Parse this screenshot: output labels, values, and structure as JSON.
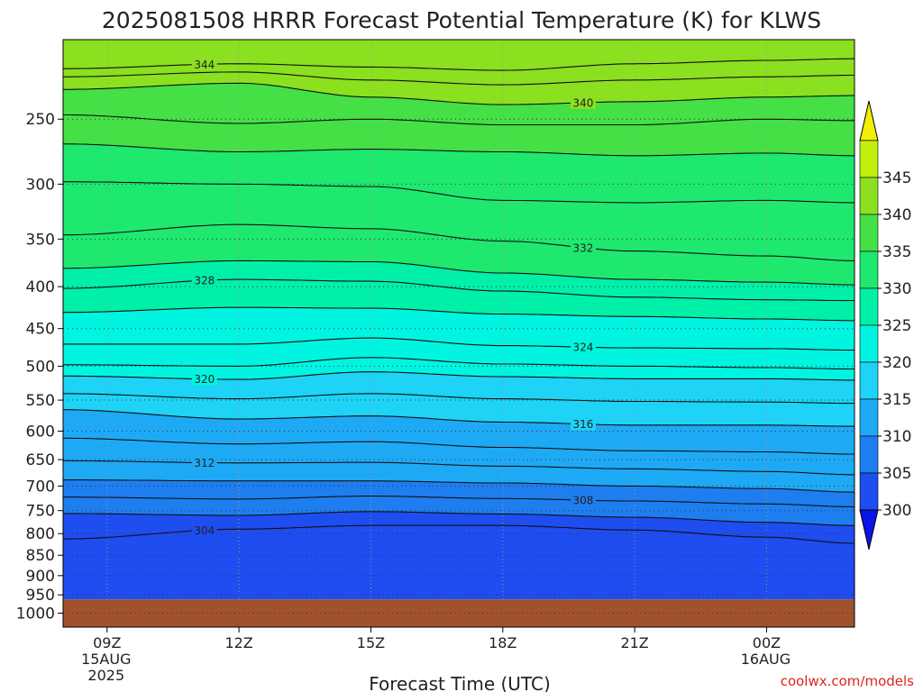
{
  "chart_data": {
    "type": "heatmap",
    "title": "2025081508 HRRR Forecast Potential Temperature (K) for KLWS",
    "xlabel": "Forecast Time (UTC)",
    "ylabel": "",
    "credit": "coolwx.com/models",
    "x_ticks": [
      {
        "hour": 9,
        "label": "09Z",
        "label2": "15AUG",
        "label3": "2025"
      },
      {
        "hour": 12,
        "label": "12Z",
        "label2": "",
        "label3": ""
      },
      {
        "hour": 15,
        "label": "15Z",
        "label2": "",
        "label3": ""
      },
      {
        "hour": 18,
        "label": "18Z",
        "label2": "",
        "label3": ""
      },
      {
        "hour": 21,
        "label": "21Z",
        "label2": "",
        "label3": ""
      },
      {
        "hour": 24,
        "label": "00Z",
        "label2": "16AUG",
        "label3": ""
      }
    ],
    "xlim_hours": [
      8,
      26
    ],
    "y_ticks": [
      "250",
      "300",
      "350",
      "400",
      "450",
      "500",
      "550",
      "600",
      "650",
      "700",
      "750",
      "800",
      "850",
      "900",
      "950",
      "1000"
    ],
    "ylim_hpa": [
      200,
      1040
    ],
    "y_scale": "log",
    "ground_level_hpa": 962,
    "colorbar": {
      "levels": [
        300,
        305,
        310,
        315,
        320,
        325,
        330,
        335,
        340,
        345
      ],
      "labels": [
        "300",
        "305",
        "310",
        "315",
        "320",
        "325",
        "330",
        "335",
        "340",
        "345"
      ],
      "colors": [
        "#0a14e6",
        "#1e4df0",
        "#1e7ef0",
        "#1ea9f5",
        "#1ed3f5",
        "#00f5e0",
        "#00f0a8",
        "#1ee86e",
        "#44e046",
        "#8be020",
        "#c2ef10",
        "#f0f000"
      ]
    },
    "contour_interval_K": 2,
    "contours": [
      {
        "theta": 344,
        "label": "344",
        "hours": [
          8,
          12,
          15,
          18,
          21,
          24,
          26
        ],
        "hpa": [
          217,
          214,
          216,
          218,
          214,
          212,
          211
        ]
      },
      {
        "theta": 342,
        "label": "",
        "hours": [
          8,
          12,
          15,
          18,
          21,
          24,
          26
        ],
        "hpa": [
          222,
          219,
          224,
          227,
          224,
          222,
          221
        ]
      },
      {
        "theta": 340,
        "label": "340",
        "hours": [
          8,
          12,
          15,
          18,
          21,
          24,
          26
        ],
        "hpa": [
          230,
          226,
          235,
          240,
          238,
          235,
          234
        ]
      },
      {
        "theta": 338,
        "label": "",
        "hours": [
          8,
          12,
          15,
          18,
          21,
          24,
          26
        ],
        "hpa": [
          247,
          253,
          250,
          254,
          254,
          250,
          251
        ]
      },
      {
        "theta": 336,
        "label": "",
        "hours": [
          8,
          12,
          15,
          18,
          21,
          24,
          26
        ],
        "hpa": [
          268,
          274,
          272,
          274,
          277,
          275,
          277
        ]
      },
      {
        "theta": 334,
        "label": "",
        "hours": [
          8,
          12,
          15,
          18,
          21,
          24,
          26
        ],
        "hpa": [
          298,
          300,
          302,
          314,
          316,
          314,
          316
        ]
      },
      {
        "theta": 332,
        "label": "332",
        "hours": [
          8,
          12,
          15,
          18,
          21,
          24,
          26
        ],
        "hpa": [
          346,
          336,
          340,
          352,
          362,
          367,
          372
        ]
      },
      {
        "theta": 330,
        "label": "",
        "hours": [
          8,
          12,
          15,
          18,
          21,
          24,
          26
        ],
        "hpa": [
          380,
          372,
          373,
          385,
          392,
          395,
          398
        ]
      },
      {
        "theta": 328,
        "label": "328",
        "hours": [
          8,
          12,
          15,
          18,
          21,
          24,
          26
        ],
        "hpa": [
          402,
          392,
          394,
          405,
          412,
          415,
          416
        ]
      },
      {
        "theta": 326,
        "label": "",
        "hours": [
          8,
          12,
          15,
          18,
          21,
          24,
          26
        ],
        "hpa": [
          430,
          424,
          425,
          432,
          435,
          438,
          440
        ]
      },
      {
        "theta": 324,
        "label": "324",
        "hours": [
          8,
          12,
          15,
          18,
          21,
          24,
          26
        ],
        "hpa": [
          470,
          470,
          462,
          472,
          475,
          476,
          478
        ]
      },
      {
        "theta": 322,
        "label": "",
        "hours": [
          8,
          12,
          15,
          18,
          21,
          24,
          26
        ],
        "hpa": [
          498,
          500,
          488,
          497,
          500,
          502,
          504
        ]
      },
      {
        "theta": 320,
        "label": "320",
        "hours": [
          8,
          12,
          15,
          18,
          21,
          24,
          26
        ],
        "hpa": [
          514,
          519,
          508,
          515,
          518,
          518,
          520
        ]
      },
      {
        "theta": 318,
        "label": "",
        "hours": [
          8,
          12,
          15,
          18,
          21,
          24,
          26
        ],
        "hpa": [
          540,
          548,
          540,
          548,
          552,
          553,
          555
        ]
      },
      {
        "theta": 316,
        "label": "316",
        "hours": [
          8,
          12,
          15,
          18,
          21,
          24,
          26
        ],
        "hpa": [
          565,
          580,
          575,
          585,
          590,
          590,
          592
        ]
      },
      {
        "theta": 314,
        "label": "",
        "hours": [
          8,
          12,
          15,
          18,
          21,
          24,
          26
        ],
        "hpa": [
          612,
          622,
          618,
          628,
          634,
          636,
          640
        ]
      },
      {
        "theta": 312,
        "label": "312",
        "hours": [
          8,
          12,
          15,
          18,
          21,
          24,
          26
        ],
        "hpa": [
          652,
          656,
          655,
          662,
          667,
          672,
          678
        ]
      },
      {
        "theta": 310,
        "label": "",
        "hours": [
          8,
          12,
          15,
          18,
          21,
          24,
          26
        ],
        "hpa": [
          688,
          690,
          690,
          694,
          700,
          705,
          712
        ]
      },
      {
        "theta": 308,
        "label": "308",
        "hours": [
          8,
          12,
          15,
          18,
          21,
          24,
          26
        ],
        "hpa": [
          722,
          726,
          720,
          725,
          730,
          736,
          742
        ]
      },
      {
        "theta": 306,
        "label": "",
        "hours": [
          8,
          12,
          15,
          18,
          21,
          24,
          26
        ],
        "hpa": [
          756,
          760,
          752,
          757,
          764,
          775,
          782
        ]
      },
      {
        "theta": 304,
        "label": "304",
        "hours": [
          8,
          12,
          15,
          18,
          21,
          24,
          26
        ],
        "hpa": [
          812,
          790,
          782,
          782,
          792,
          808,
          822
        ]
      }
    ]
  }
}
